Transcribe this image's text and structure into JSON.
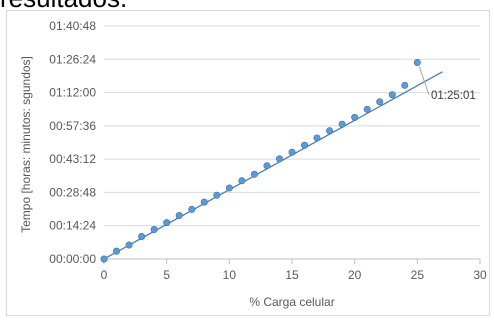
{
  "page": {
    "top_text": "resultados."
  },
  "chart_data": {
    "type": "scatter",
    "title": "",
    "xlabel": "% Carga celular",
    "ylabel": "Tempo [horas: minutos: sgundos]",
    "xlim": [
      0,
      30
    ],
    "ylim_seconds": [
      0,
      6048
    ],
    "x_ticks": [
      "0",
      "5",
      "10",
      "15",
      "20",
      "25",
      "30"
    ],
    "y_ticks": [
      "00:00:00",
      "00:14:24",
      "00:28:48",
      "00:43:12",
      "00:57:36",
      "01:12:00",
      "01:26:24",
      "01:40:48"
    ],
    "y_tick_values_seconds": [
      0,
      864,
      1728,
      2592,
      3456,
      4320,
      5184,
      6048
    ],
    "series": [
      {
        "type": "scatter",
        "marker_color": "#5b9bd5",
        "x": [
          0,
          1,
          2,
          3,
          4,
          5,
          6,
          7,
          8,
          9,
          10,
          11,
          12,
          13,
          14,
          15,
          16,
          17,
          18,
          19,
          20,
          21,
          22,
          23,
          24,
          25
        ],
        "y_seconds": [
          0,
          205,
          362,
          584,
          766,
          944,
          1130,
          1287,
          1477,
          1656,
          1844,
          2032,
          2201,
          2419,
          2599,
          2771,
          2952,
          3142,
          3328,
          3497,
          3677,
          3885,
          4080,
          4264,
          4508,
          5101
        ]
      },
      {
        "type": "trendline",
        "line_color": "#4a7ebb",
        "x": [
          0,
          27
        ],
        "y_seconds": [
          0,
          4860
        ]
      }
    ],
    "annotation": {
      "text": "01:25:01",
      "x": 25,
      "y_seconds": 5101
    },
    "grid": "horizontal"
  }
}
